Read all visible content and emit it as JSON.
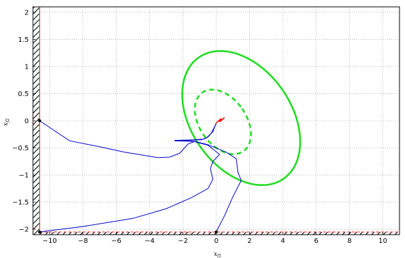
{
  "chart_data": {
    "type": "line",
    "title": "",
    "xlabel": "x_{f1}",
    "ylabel": "x_{f2}",
    "xlabel_parts": {
      "base": "x",
      "sub": "f1"
    },
    "ylabel_parts": {
      "base": "x",
      "sub": "f2"
    },
    "xlim": [
      -11,
      11
    ],
    "ylim": [
      -2.1,
      2.1
    ],
    "x_ticks": [
      -10,
      -8,
      -6,
      -4,
      -2,
      0,
      2,
      4,
      6,
      8,
      10
    ],
    "y_ticks": [
      -2,
      -1.5,
      -1,
      -0.5,
      0,
      0.5,
      1,
      1.5,
      2
    ],
    "x_tick_labels": [
      "−10",
      "−8",
      "−6",
      "−4",
      "−2",
      "0",
      "2",
      "4",
      "6",
      "8",
      "10"
    ],
    "y_tick_labels": [
      "−2",
      "−1.5",
      "−1",
      "−0.5",
      "0",
      "0.5",
      "1",
      "1.5",
      "2"
    ],
    "grid": true,
    "colors": {
      "trajectory": "#0000cc",
      "ellipse": "#22dd22",
      "constraint": "#ff3333",
      "red_tail": "#ff0000",
      "hatch": "#000000"
    },
    "constraints": {
      "x_min": -10.6,
      "y_min": -2.05
    },
    "ellipses": [
      {
        "style": "solid",
        "cx": 1.5,
        "cy": 0.05,
        "rx": 3.0,
        "ry": 0.62,
        "angle_deg": 35
      },
      {
        "style": "dashed",
        "cx": 0.4,
        "cy": -0.02,
        "rx": 1.4,
        "ry": 0.3,
        "angle_deg": 35
      }
    ],
    "series": [
      {
        "style": "solid",
        "points": [
          [
            -10.6,
            0.0
          ],
          [
            -8.8,
            -0.37
          ],
          [
            -7.0,
            -0.48
          ],
          [
            -5.5,
            -0.58
          ],
          [
            -4.5,
            -0.63
          ],
          [
            -3.5,
            -0.68
          ],
          [
            -2.8,
            -0.67
          ],
          [
            -2.2,
            -0.6
          ],
          [
            -1.9,
            -0.5
          ],
          [
            -1.7,
            -0.43
          ],
          [
            -1.3,
            -0.38
          ],
          [
            -2.5,
            -0.37
          ],
          [
            -0.8,
            -0.34
          ],
          [
            -0.5,
            -0.3
          ],
          [
            -0.2,
            -0.2
          ],
          [
            0.0,
            -0.04
          ]
        ]
      },
      {
        "style": "solid",
        "points": [
          [
            -10.6,
            -2.05
          ],
          [
            -8.0,
            -1.95
          ],
          [
            -5.0,
            -1.8
          ],
          [
            -3.0,
            -1.62
          ],
          [
            -1.5,
            -1.42
          ],
          [
            -0.5,
            -1.25
          ],
          [
            -0.2,
            -1.08
          ],
          [
            -0.35,
            -0.88
          ],
          [
            -0.2,
            -0.75
          ],
          [
            0.2,
            -0.62
          ],
          [
            -0.5,
            -0.45
          ],
          [
            -1.5,
            -0.37
          ],
          [
            -2.4,
            -0.36
          ]
        ]
      },
      {
        "style": "solid",
        "points": [
          [
            0.0,
            -2.05
          ],
          [
            0.5,
            -1.75
          ],
          [
            1.0,
            -1.4
          ],
          [
            1.5,
            -1.1
          ],
          [
            1.3,
            -0.95
          ],
          [
            1.2,
            -0.7
          ],
          [
            0.6,
            -0.58
          ],
          [
            -0.5,
            -0.44
          ],
          [
            -1.3,
            -0.38
          ],
          [
            -2.5,
            -0.36
          ],
          [
            -0.9,
            -0.35
          ],
          [
            -0.6,
            -0.32
          ],
          [
            -0.3,
            -0.23
          ],
          [
            0.0,
            -0.05
          ]
        ]
      }
    ],
    "red_tail": [
      [
        0.0,
        -0.04
      ],
      [
        0.3,
        0.04
      ],
      [
        0.2,
        -0.02
      ],
      [
        0.5,
        0.06
      ]
    ],
    "markers": [
      [
        -10.6,
        0.0
      ],
      [
        -10.6,
        -2.05
      ],
      [
        0.0,
        -2.05
      ]
    ]
  }
}
